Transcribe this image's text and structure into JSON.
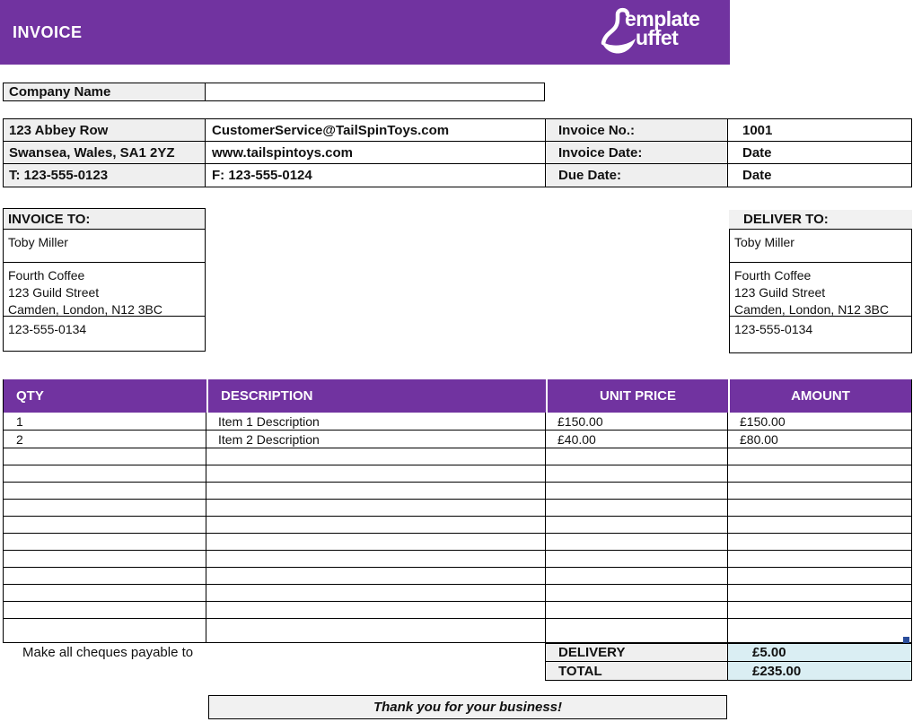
{
  "banner": {
    "title": "INVOICE",
    "logo": {
      "line1": "emplate",
      "line2": "uffet"
    }
  },
  "company": {
    "label": "Company Name",
    "value": ""
  },
  "contact_rows": [
    {
      "left": "123 Abbey Row",
      "right": "CustomerService@TailSpinToys.com"
    },
    {
      "left": "Swansea, Wales, SA1 2YZ",
      "right": "www.tailspintoys.com"
    },
    {
      "left": "T: 123-555-0123",
      "right": "F: 123-555-0124"
    }
  ],
  "invoice_meta": [
    {
      "label": "Invoice No.:",
      "value": "1001"
    },
    {
      "label": "Invoice Date:",
      "value": "Date"
    },
    {
      "label": "Due Date:",
      "value": "Date"
    }
  ],
  "invoice_to": {
    "header": "INVOICE TO:",
    "name": "Toby Miller",
    "address_lines": [
      "Fourth Coffee",
      "123 Guild Street",
      "Camden, London, N12 3BC"
    ],
    "phone": "123-555-0134"
  },
  "deliver_to": {
    "header": "DELIVER TO:",
    "name": "Toby Miller",
    "address_lines": [
      "Fourth Coffee",
      "123 Guild Street",
      "Camden, London, N12 3BC"
    ],
    "phone": "123-555-0134"
  },
  "items_table": {
    "headers": [
      "QTY",
      "DESCRIPTION",
      "UNIT PRICE",
      "AMOUNT"
    ],
    "rows": [
      {
        "qty": "1",
        "description": "Item 1 Description",
        "unit_price": "£150.00",
        "amount": "£150.00"
      },
      {
        "qty": "2",
        "description": "Item 2 Description",
        "unit_price": "£40.00",
        "amount": "£80.00"
      }
    ],
    "empty_row_count": 11
  },
  "footer": {
    "cheques_note": "Make all cheques payable to",
    "summary": [
      {
        "label": "DELIVERY",
        "value": "£5.00"
      },
      {
        "label": "TOTAL",
        "value": "£235.00"
      }
    ],
    "thank_you": "Thank you for your business!"
  },
  "colors": {
    "brand_purple": "#7133A0",
    "label_gray": "#EFEFEF",
    "summary_blue": "#DAEEF3",
    "handle_blue": "#2A4D9B"
  }
}
